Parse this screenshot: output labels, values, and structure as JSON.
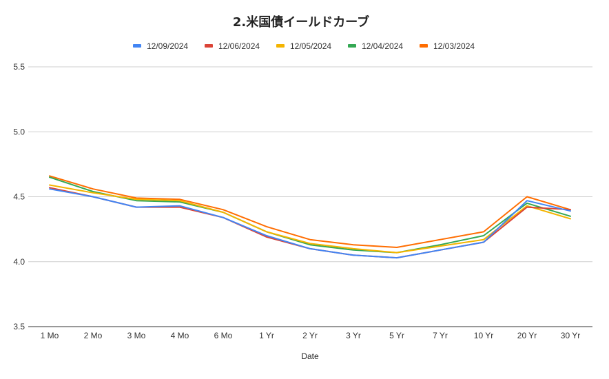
{
  "chart_data": {
    "type": "line",
    "title": "2.米国債イールドカーブ",
    "xlabel": "Date",
    "ylabel": "",
    "ylim": [
      3.5,
      5.5
    ],
    "yticks": [
      "3.5",
      "4.0",
      "4.5",
      "5.0",
      "5.5"
    ],
    "ytick_values": [
      3.5,
      4.0,
      4.5,
      5.0,
      5.5
    ],
    "grid": true,
    "legend_position": "top-center",
    "categories": [
      "1 Mo",
      "2 Mo",
      "3 Mo",
      "4 Mo",
      "6 Mo",
      "1 Yr",
      "2 Yr",
      "3 Yr",
      "5 Yr",
      "7 Yr",
      "10 Yr",
      "20 Yr",
      "30 Yr"
    ],
    "series": [
      {
        "name": "12/09/2024",
        "color": "#4285f4",
        "values": [
          4.56,
          4.5,
          4.42,
          4.43,
          4.34,
          4.2,
          4.1,
          4.05,
          4.03,
          4.09,
          4.15,
          4.47,
          4.39
        ]
      },
      {
        "name": "12/06/2024",
        "color": "#db4437",
        "values": [
          4.57,
          4.5,
          4.42,
          4.42,
          4.34,
          4.19,
          4.1,
          4.05,
          4.03,
          4.09,
          4.15,
          4.42,
          4.4
        ]
      },
      {
        "name": "12/05/2024",
        "color": "#f4b400",
        "values": [
          4.59,
          4.53,
          4.48,
          4.47,
          4.38,
          4.23,
          4.14,
          4.1,
          4.07,
          4.12,
          4.17,
          4.43,
          4.33
        ]
      },
      {
        "name": "12/04/2024",
        "color": "#34a853",
        "values": [
          4.65,
          4.54,
          4.47,
          4.46,
          4.38,
          4.23,
          4.13,
          4.09,
          4.07,
          4.13,
          4.2,
          4.45,
          4.35
        ]
      },
      {
        "name": "12/03/2024",
        "color": "#ff6d01",
        "values": [
          4.66,
          4.56,
          4.49,
          4.48,
          4.4,
          4.27,
          4.17,
          4.13,
          4.11,
          4.17,
          4.23,
          4.5,
          4.4
        ]
      }
    ]
  }
}
